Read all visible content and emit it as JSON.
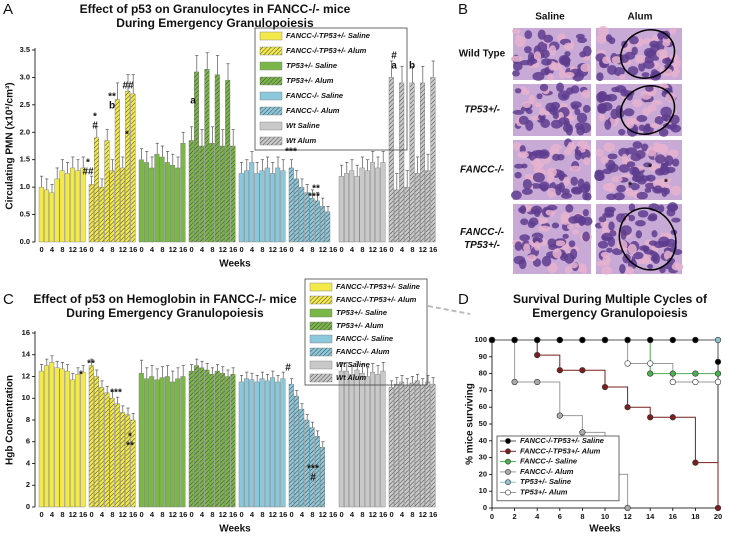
{
  "figure": {
    "panel_labels": [
      "A",
      "B",
      "C",
      "D"
    ],
    "histology": {
      "columns": [
        "Saline",
        "Alum"
      ],
      "rows": [
        [
          "Wild Type"
        ],
        [
          "TP53+/-"
        ],
        [
          "FANCC-/-"
        ],
        [
          "FANCC-/-",
          "TP53+/-"
        ]
      ],
      "marks": [
        "*",
        "*",
        "*"
      ]
    }
  },
  "chart_data": [
    {
      "type": "bar",
      "title": [
        "Effect of p53 on Granulocytes in FANCC-/- mice",
        "During Emergency Granulopoiesis"
      ],
      "x_label": "Weeks",
      "y_label": "Circulating PMN (x10³/cm³)",
      "ylim": [
        0,
        3.5
      ],
      "yticks": [
        {
          "value": 0,
          "label": "0.0"
        },
        0.5,
        {
          "value": 1,
          "label": "1.0"
        },
        1.5,
        {
          "value": 2,
          "label": "2.0"
        },
        2.5,
        {
          "value": 3,
          "label": "3.0"
        },
        3.5
      ],
      "xticks": [
        0,
        4,
        8,
        12,
        16
      ],
      "series": [
        {
          "name": "FANCC-/-TP53+/- Saline",
          "color": "#f3e94b",
          "pattern": "solid",
          "x": [
            0,
            2,
            4,
            6,
            8,
            10,
            12,
            14,
            16
          ],
          "values": [
            1.0,
            0.95,
            0.9,
            1.15,
            1.3,
            1.25,
            1.35,
            1.3,
            1.35
          ],
          "errors": [
            0.2,
            0.2,
            0.15,
            0.2,
            0.2,
            0.2,
            0.2,
            0.2,
            0.2
          ]
        },
        {
          "name": "FANCC-/-TP53+/- Alum",
          "color": "#f3e94b",
          "pattern": "hatch",
          "x": [
            0,
            2,
            4,
            6,
            8,
            10,
            12,
            14,
            16
          ],
          "values": [
            1.05,
            1.9,
            1.0,
            1.85,
            1.3,
            2.6,
            1.35,
            2.75,
            2.7
          ],
          "errors": [
            0.15,
            0.2,
            0.15,
            0.2,
            0.2,
            0.3,
            0.2,
            0.3,
            0.35
          ]
        },
        {
          "name": "TP53+/- Saline",
          "color": "#7ab648",
          "pattern": "solid",
          "x": [
            0,
            2,
            4,
            6,
            8,
            10,
            12,
            14,
            16
          ],
          "values": [
            1.5,
            1.45,
            1.35,
            1.6,
            1.55,
            1.45,
            1.4,
            1.35,
            1.8
          ],
          "errors": [
            0.2,
            0.2,
            0.2,
            0.2,
            0.2,
            0.2,
            0.2,
            0.2,
            0.2
          ]
        },
        {
          "name": "TP53+/- Alum",
          "color": "#7ab648",
          "pattern": "hatch",
          "x": [
            0,
            2,
            4,
            6,
            8,
            10,
            12,
            14,
            16
          ],
          "values": [
            1.85,
            3.1,
            1.75,
            3.15,
            1.8,
            3.05,
            1.75,
            2.95,
            1.75
          ],
          "errors": [
            0.25,
            0.3,
            0.3,
            0.3,
            0.3,
            0.35,
            0.3,
            0.3,
            0.3
          ]
        },
        {
          "name": "FANCC-/- Saline",
          "color": "#8cc8dc",
          "pattern": "solid",
          "x": [
            0,
            2,
            4,
            6,
            8,
            10,
            12,
            14,
            16
          ],
          "values": [
            1.25,
            1.3,
            1.45,
            1.25,
            1.3,
            1.35,
            1.25,
            1.35,
            1.3
          ],
          "errors": [
            0.2,
            0.2,
            0.2,
            0.2,
            0.2,
            0.2,
            0.2,
            0.2,
            0.2
          ]
        },
        {
          "name": "FANCC-/- Alum",
          "color": "#8cc8dc",
          "pattern": "hatch",
          "x": [
            0,
            2,
            4,
            6,
            8,
            10,
            12,
            14
          ],
          "values": [
            1.35,
            1.15,
            1.0,
            0.9,
            0.8,
            0.75,
            0.65,
            0.55
          ],
          "errors": [
            0.15,
            0.15,
            0.15,
            0.15,
            0.15,
            0.15,
            0.15,
            0.1
          ]
        },
        {
          "name": "Wt Saline",
          "color": "#c9c9c9",
          "pattern": "solid",
          "x": [
            0,
            2,
            4,
            6,
            8,
            10,
            12,
            14,
            16
          ],
          "values": [
            1.2,
            1.25,
            1.3,
            1.2,
            1.35,
            1.3,
            1.45,
            1.35,
            1.45
          ],
          "errors": [
            0.2,
            0.2,
            0.2,
            0.2,
            0.2,
            0.2,
            0.2,
            0.2,
            0.2
          ]
        },
        {
          "name": "Wt Alum",
          "color": "#c9c9c9",
          "pattern": "hatch",
          "x": [
            0,
            2,
            4,
            6,
            8,
            10,
            12,
            14,
            16
          ],
          "values": [
            3.0,
            0.95,
            2.9,
            1.0,
            2.9,
            1.25,
            2.9,
            1.3,
            3.0
          ],
          "errors": [
            0.3,
            0.3,
            0.3,
            0.3,
            0.3,
            0.3,
            0.3,
            0.3,
            0.3
          ]
        }
      ],
      "annotations": [
        "*",
        "##",
        "*",
        "#",
        "**",
        "b",
        "##",
        "*",
        "a",
        "***",
        "**",
        "***",
        "#",
        "a",
        "b"
      ]
    },
    {
      "type": "bar",
      "title": [
        "Effect of p53 on Hemoglobin in FANCC-/- mice",
        "During Emergency Granulopoiesis"
      ],
      "x_label": "Weeks",
      "y_label": "Hgb Concentration",
      "ylim": [
        0,
        16
      ],
      "yticks": [
        0,
        2,
        4,
        6,
        8,
        10,
        12,
        14,
        16
      ],
      "xticks": [
        0,
        4,
        8,
        12,
        16
      ],
      "series": [
        {
          "name": "FANCC-/-TP53+/- Saline",
          "color": "#f3e94b",
          "pattern": "solid",
          "x": [
            0,
            2,
            4,
            6,
            8,
            10,
            12,
            14,
            16
          ],
          "values": [
            12.5,
            13.0,
            13.3,
            12.8,
            12.7,
            12.5,
            11.7,
            12.2,
            12.4
          ],
          "errors": [
            0.6,
            0.6,
            0.6,
            0.6,
            0.6,
            0.6,
            0.6,
            0.6,
            0.6
          ]
        },
        {
          "name": "FANCC-/-TP53+/- Alum",
          "color": "#f3e94b",
          "pattern": "hatch",
          "x": [
            0,
            2,
            4,
            6,
            8,
            10,
            12,
            14,
            16
          ],
          "values": [
            13.0,
            12.0,
            11.0,
            10.5,
            10.0,
            9.5,
            8.7,
            8.5,
            8.0
          ],
          "errors": [
            0.6,
            0.6,
            0.6,
            0.6,
            0.6,
            0.6,
            0.6,
            0.6,
            0.6
          ]
        },
        {
          "name": "TP53+/- Saline",
          "color": "#7ab648",
          "pattern": "solid",
          "x": [
            0,
            2,
            4,
            6,
            8,
            10,
            12,
            14,
            16
          ],
          "values": [
            12.3,
            11.8,
            12.0,
            11.7,
            11.9,
            12.0,
            11.5,
            11.8,
            12.0
          ],
          "errors": [
            1.2,
            1.0,
            1.0,
            1.0,
            1.0,
            1.0,
            1.0,
            1.0,
            1.0
          ]
        },
        {
          "name": "TP53+/- Alum",
          "color": "#7ab648",
          "pattern": "hatch",
          "x": [
            0,
            2,
            4,
            6,
            8,
            10,
            12,
            14,
            16
          ],
          "values": [
            12.5,
            13.0,
            12.8,
            12.6,
            12.2,
            12.5,
            12.3,
            12.0,
            12.2
          ],
          "errors": [
            0.6,
            0.6,
            0.6,
            0.6,
            0.6,
            0.6,
            0.6,
            0.6,
            0.6
          ]
        },
        {
          "name": "FANCC-/- Saline",
          "color": "#8cc8dc",
          "pattern": "solid",
          "x": [
            0,
            2,
            4,
            6,
            8,
            10,
            12,
            14,
            16
          ],
          "values": [
            11.5,
            11.8,
            11.7,
            11.5,
            11.8,
            11.6,
            11.9,
            11.5,
            11.8
          ],
          "errors": [
            0.6,
            0.6,
            0.6,
            0.6,
            0.6,
            0.6,
            0.6,
            0.6,
            0.6
          ]
        },
        {
          "name": "FANCC-/- Alum",
          "color": "#8cc8dc",
          "pattern": "hatch",
          "x": [
            0,
            2,
            4,
            6,
            8,
            10,
            12
          ],
          "values": [
            11.3,
            10.2,
            9.0,
            8.0,
            7.3,
            6.5,
            5.5
          ],
          "errors": [
            0.5,
            0.5,
            0.5,
            0.5,
            0.5,
            0.5,
            0.5
          ]
        },
        {
          "name": "Wt Saline",
          "color": "#c9c9c9",
          "pattern": "solid",
          "x": [
            0,
            2,
            4,
            6,
            8,
            10,
            12,
            14,
            16
          ],
          "values": [
            12.5,
            12.5,
            12.2,
            12.6,
            12.3,
            12.0,
            12.4,
            12.2,
            12.5
          ],
          "errors": [
            0.8,
            0.8,
            0.8,
            0.8,
            0.8,
            0.8,
            0.8,
            0.8,
            0.8
          ]
        },
        {
          "name": "Wt Alum",
          "color": "#c9c9c9",
          "pattern": "hatch",
          "x": [
            0,
            2,
            4,
            6,
            8,
            10,
            12,
            14,
            16
          ],
          "values": [
            11.0,
            11.3,
            11.5,
            11.2,
            11.4,
            11.6,
            11.2,
            11.5,
            11.3
          ],
          "errors": [
            0.6,
            0.6,
            0.6,
            0.6,
            0.6,
            0.6,
            0.6,
            0.6,
            0.6
          ]
        }
      ],
      "annotations": [
        "*",
        "**",
        "***",
        "*",
        "**",
        "#",
        "***",
        "#"
      ]
    },
    {
      "type": "step",
      "title": [
        "Survival During Multiple Cycles of",
        "Emergency Granulopoiesis"
      ],
      "x_label": "Weeks",
      "y_label": "% mice surviving",
      "xlim": [
        0,
        20
      ],
      "xticks": [
        0,
        2,
        4,
        6,
        8,
        10,
        12,
        14,
        16,
        18,
        20
      ],
      "ylim": [
        0,
        100
      ],
      "yticks": [
        0,
        10,
        20,
        30,
        40,
        50,
        60,
        70,
        80,
        90,
        100
      ],
      "series": [
        {
          "name": "FANCC-/-TP53+/- Saline",
          "color": "#000000",
          "line_color": "#555555",
          "x": [
            0,
            2,
            4,
            6,
            8,
            10,
            12,
            14,
            16,
            18,
            20
          ],
          "values": [
            100,
            100,
            100,
            100,
            100,
            100,
            100,
            100,
            100,
            100,
            87
          ]
        },
        {
          "name": "FANCC-/-TP53+/- Alum",
          "color": "#7a1f1f",
          "line_color": "#7a1f1f",
          "x": [
            0,
            2,
            4,
            6,
            8,
            10,
            12,
            14,
            16,
            18,
            20
          ],
          "values": [
            100,
            100,
            91,
            82,
            82,
            72,
            60,
            54,
            54,
            27,
            0
          ]
        },
        {
          "name": "FANCC-/- Saline",
          "color": "#4caf50",
          "line_color": "#4caf50",
          "x": [
            0,
            2,
            4,
            6,
            8,
            10,
            12,
            14,
            16,
            18,
            20
          ],
          "values": [
            100,
            100,
            100,
            100,
            100,
            100,
            100,
            80,
            80,
            80,
            80
          ]
        },
        {
          "name": "FANCC-/- Alum",
          "color": "#aaaaaa",
          "line_color": "#999999",
          "x": [
            0,
            2,
            4,
            6,
            8,
            10,
            12
          ],
          "values": [
            100,
            75,
            75,
            55,
            45,
            20,
            0
          ]
        },
        {
          "name": "TP53+/- Saline",
          "color": "#8fc3d0",
          "line_color": "#8fc3d0",
          "x": [
            0,
            2,
            4,
            6,
            8,
            10,
            12,
            14,
            16,
            18,
            20
          ],
          "values": [
            100,
            100,
            100,
            100,
            100,
            100,
            100,
            100,
            100,
            100,
            100
          ]
        },
        {
          "name": "TP53+/- Alum",
          "color": "#ffffff",
          "line_color": "#999999",
          "x": [
            0,
            2,
            4,
            6,
            8,
            10,
            12,
            14,
            16,
            18,
            20
          ],
          "values": [
            100,
            100,
            100,
            100,
            100,
            100,
            86,
            86,
            75,
            75,
            75
          ]
        }
      ]
    }
  ]
}
